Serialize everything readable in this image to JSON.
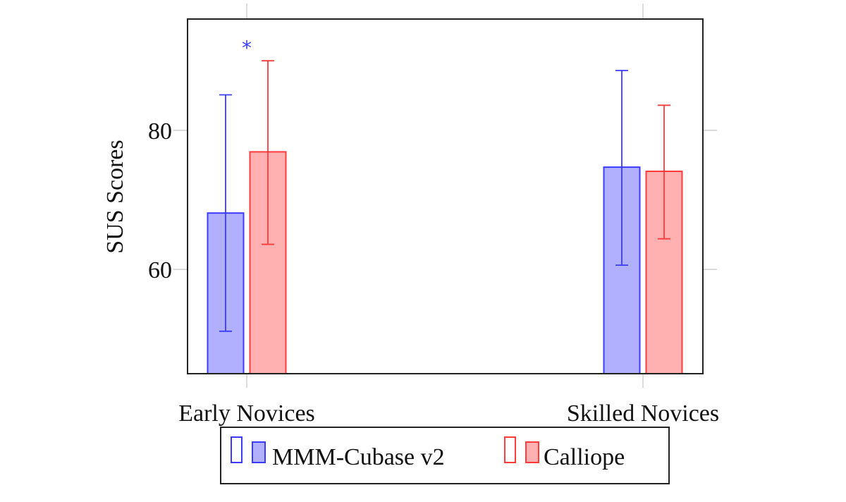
{
  "chart_data": {
    "type": "bar",
    "categories": [
      "Early Novices",
      "Skilled Novices"
    ],
    "ylabel": "SUS Scores",
    "xlabel": "",
    "ylim": [
      45,
      96
    ],
    "yticks": [
      60,
      80
    ],
    "grid": false,
    "legend_position": "bottom",
    "series": [
      {
        "name": "MMM-Cubase v2",
        "color": "#3b3bff",
        "fill": "#b0b0ff",
        "values": [
          68.1,
          74.7
        ],
        "err_low": [
          51.1,
          60.6
        ],
        "err_high": [
          85.1,
          88.6
        ]
      },
      {
        "name": "Calliope",
        "color": "#ff3b3b",
        "fill": "#ffb0b0",
        "values": [
          76.9,
          74.1
        ],
        "err_low": [
          63.6,
          64.4
        ],
        "err_high": [
          90.0,
          83.6
        ]
      }
    ],
    "annotations": [
      {
        "text": "*",
        "category": "Early Novices",
        "color": "#3b3bff",
        "y": 92.5
      }
    ]
  }
}
